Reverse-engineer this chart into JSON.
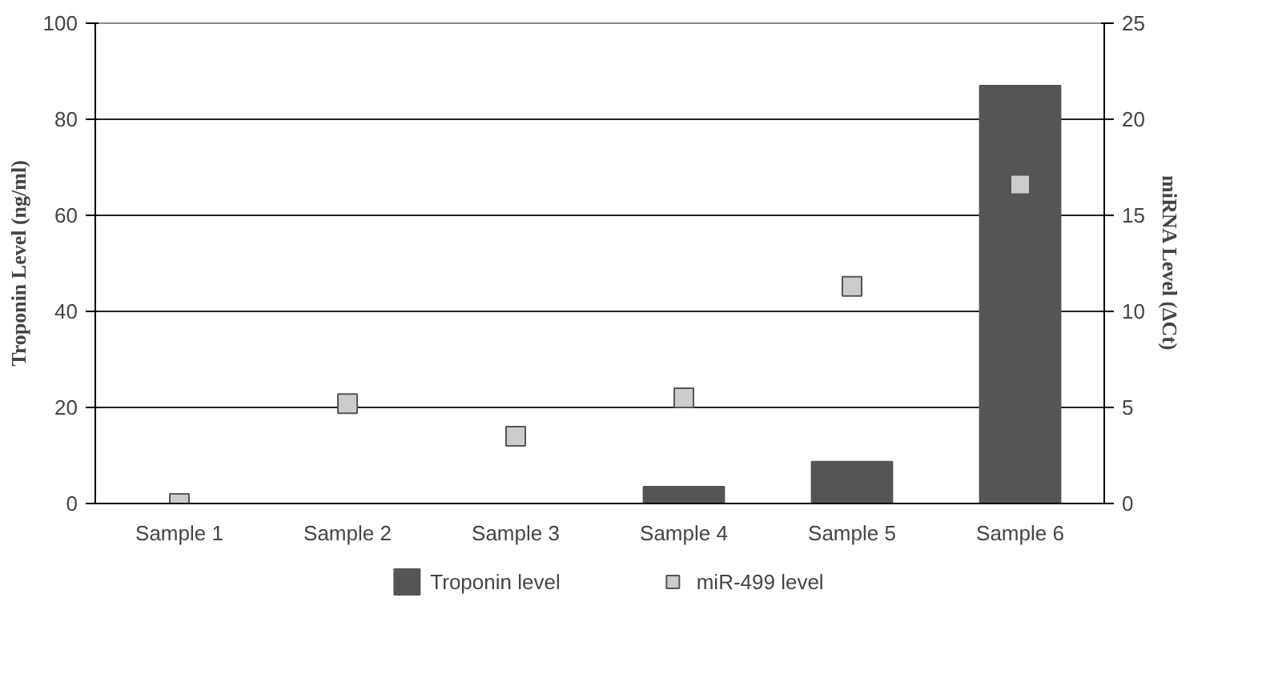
{
  "chart_data": {
    "type": "bar",
    "ylabel": "Troponin Level (ng/ml)",
    "y2label": "miRNA Level (ΔCt)",
    "categories": [
      "Sample 1",
      "Sample 2",
      "Sample 3",
      "Sample 4",
      "Sample 5",
      "Sample 6"
    ],
    "series": [
      {
        "name": "Troponin level",
        "color": "#555555",
        "values": [
          0,
          0,
          0,
          3.5,
          8.7,
          87
        ]
      },
      {
        "name": "miR-499 level",
        "type": "scatter",
        "axis": "y2",
        "color": "#cccccc",
        "values": [
          0,
          5.2,
          3.5,
          5.5,
          11.3,
          16.6
        ]
      }
    ],
    "ylim": [
      0,
      100
    ],
    "yticks": [
      0,
      20,
      40,
      60,
      80,
      100
    ],
    "y2lim": [
      0,
      25
    ],
    "y2ticks": [
      0,
      5,
      10,
      15,
      20,
      25
    ],
    "grid": "y",
    "legend": "bottom",
    "marker": "square"
  }
}
